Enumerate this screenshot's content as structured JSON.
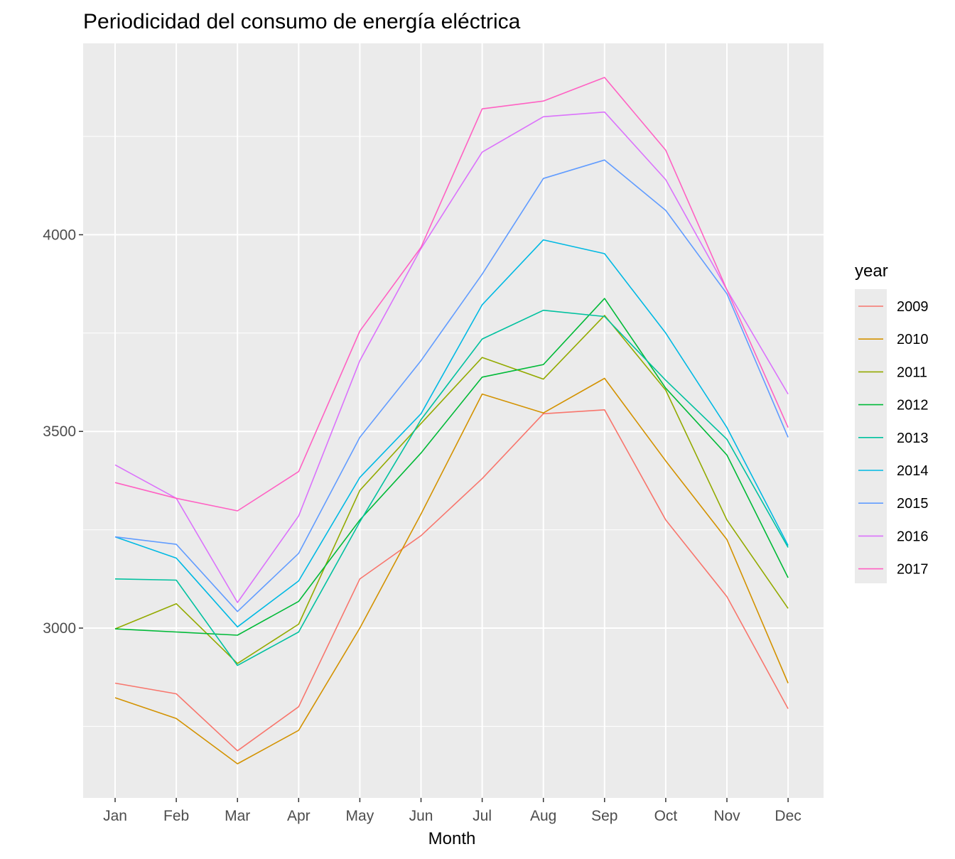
{
  "chart_data": {
    "type": "line",
    "title": "Periodicidad del consumo de energía eléctrica",
    "xlabel": "Month",
    "ylabel": "",
    "legend_title": "year",
    "legend_position": "right",
    "grid": true,
    "ylim": [
      2640,
      4425
    ],
    "y_major_ticks": [
      3000,
      3500,
      4000
    ],
    "y_minor_ticks": [
      2750,
      3250,
      3750,
      4250
    ],
    "categories": [
      "Jan",
      "Feb",
      "Mar",
      "Apr",
      "May",
      "Jun",
      "Jul",
      "Aug",
      "Sep",
      "Oct",
      "Nov",
      "Dec"
    ],
    "series": [
      {
        "name": "2009",
        "color": "#F8766D",
        "values": [
          2860,
          2833,
          2688,
          2800,
          3125,
          3235,
          3380,
          3545,
          3555,
          3275,
          3080,
          2795
        ]
      },
      {
        "name": "2010",
        "color": "#D39200",
        "values": [
          2823,
          2770,
          2655,
          2740,
          3000,
          3290,
          3595,
          3547,
          3635,
          3425,
          3225,
          2860
        ]
      },
      {
        "name": "2011",
        "color": "#93AA00",
        "values": [
          2998,
          3062,
          2910,
          3010,
          3350,
          3520,
          3688,
          3633,
          3795,
          3605,
          3275,
          3050
        ]
      },
      {
        "name": "2012",
        "color": "#00BA38",
        "values": [
          2998,
          2990,
          2982,
          3068,
          3275,
          3445,
          3638,
          3670,
          3838,
          3610,
          3440,
          3128
        ]
      },
      {
        "name": "2013",
        "color": "#00C19F",
        "values": [
          3125,
          3122,
          2905,
          2990,
          3270,
          3530,
          3735,
          3808,
          3792,
          3630,
          3480,
          3205
        ]
      },
      {
        "name": "2014",
        "color": "#00B9E3",
        "values": [
          3232,
          3178,
          3003,
          3120,
          3383,
          3545,
          3822,
          3987,
          3952,
          3750,
          3510,
          3210
        ]
      },
      {
        "name": "2015",
        "color": "#619CFF",
        "values": [
          3232,
          3213,
          3042,
          3190,
          3485,
          3680,
          3900,
          4143,
          4190,
          4062,
          3850,
          3485
        ]
      },
      {
        "name": "2016",
        "color": "#DB72FB",
        "values": [
          3415,
          3330,
          3065,
          3285,
          3680,
          3965,
          4210,
          4300,
          4312,
          4140,
          3860,
          3595
        ]
      },
      {
        "name": "2017",
        "color": "#FF61C3",
        "values": [
          3370,
          3330,
          3298,
          3398,
          3755,
          3968,
          4320,
          4340,
          4400,
          4215,
          3860,
          3510
        ]
      }
    ]
  }
}
